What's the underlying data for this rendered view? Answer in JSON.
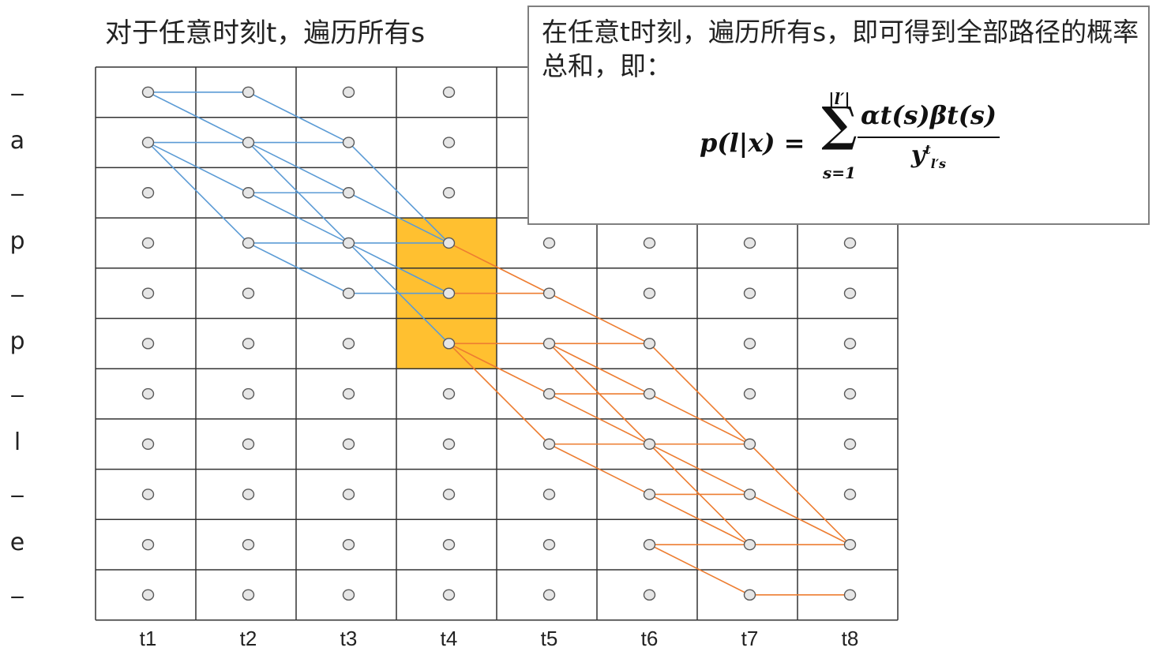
{
  "heading": "对于任意时刻t，遍历所有s",
  "callout": {
    "text": "在任意t时刻，遍历所有s，即可得到全部路径的概率总和，即：",
    "formula": {
      "lhs": "p(l|x) =",
      "sum_upper": "|l′|",
      "sum_lower": "s=1",
      "numerator": "αt(s)βt(s)",
      "denominator_base": "y",
      "denominator_sup": "t",
      "denominator_sub": "l′s"
    }
  },
  "row_labels": [
    "_",
    "a",
    "_",
    "p",
    "_",
    "p",
    "_",
    "l",
    "_",
    "e",
    "_"
  ],
  "col_labels": [
    "t1",
    "t2",
    "t3",
    "t4",
    "t5",
    "t6",
    "t7",
    "t8"
  ],
  "colors": {
    "grid_line": "#333333",
    "node_fill": "#e6e6e6",
    "node_stroke": "#595959",
    "forward_path": "#5b9bd5",
    "backward_path": "#ed7d31",
    "highlight": "#ffc030",
    "callout_border": "#7f7f7f"
  },
  "highlight": {
    "col": 4,
    "rows": [
      4,
      5,
      6
    ]
  },
  "forward_edges": [
    [
      1,
      1,
      2,
      1
    ],
    [
      1,
      1,
      2,
      2
    ],
    [
      1,
      2,
      2,
      2
    ],
    [
      1,
      2,
      2,
      3
    ],
    [
      1,
      2,
      2,
      4
    ],
    [
      2,
      1,
      3,
      2
    ],
    [
      2,
      2,
      3,
      2
    ],
    [
      2,
      2,
      3,
      3
    ],
    [
      2,
      2,
      3,
      4
    ],
    [
      2,
      3,
      3,
      3
    ],
    [
      2,
      3,
      3,
      4
    ],
    [
      2,
      4,
      3,
      4
    ],
    [
      2,
      4,
      3,
      5
    ],
    [
      3,
      2,
      4,
      4
    ],
    [
      3,
      3,
      4,
      4
    ],
    [
      3,
      4,
      4,
      4
    ],
    [
      3,
      4,
      4,
      5
    ],
    [
      3,
      4,
      4,
      6
    ],
    [
      3,
      5,
      4,
      5
    ]
  ],
  "backward_edges": [
    [
      4,
      4,
      5,
      5
    ],
    [
      4,
      5,
      5,
      5
    ],
    [
      4,
      6,
      5,
      6
    ],
    [
      4,
      6,
      5,
      7
    ],
    [
      4,
      6,
      5,
      8
    ],
    [
      5,
      5,
      6,
      6
    ],
    [
      5,
      6,
      6,
      6
    ],
    [
      5,
      6,
      6,
      7
    ],
    [
      5,
      6,
      6,
      8
    ],
    [
      5,
      7,
      6,
      7
    ],
    [
      5,
      7,
      6,
      8
    ],
    [
      5,
      8,
      6,
      8
    ],
    [
      5,
      8,
      6,
      9
    ],
    [
      6,
      6,
      7,
      8
    ],
    [
      6,
      7,
      7,
      8
    ],
    [
      6,
      8,
      7,
      8
    ],
    [
      6,
      8,
      7,
      9
    ],
    [
      6,
      8,
      7,
      10
    ],
    [
      6,
      9,
      7,
      9
    ],
    [
      6,
      9,
      7,
      10
    ],
    [
      6,
      10,
      7,
      10
    ],
    [
      6,
      10,
      7,
      11
    ],
    [
      7,
      9,
      8,
      10
    ],
    [
      7,
      10,
      8,
      10
    ],
    [
      7,
      11,
      8,
      11
    ],
    [
      7,
      8,
      8,
      10
    ]
  ]
}
